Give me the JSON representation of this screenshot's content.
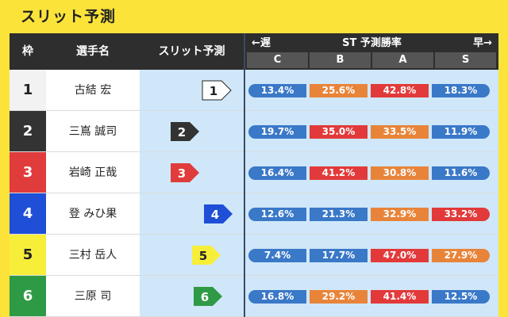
{
  "title": "スリット予測",
  "headers": {
    "waku": "枠",
    "name": "選手名",
    "slit": "スリット予測",
    "st_title": "ST 予測勝率",
    "slow": "←遅",
    "fast": "早→",
    "cols": [
      "C",
      "B",
      "A",
      "S"
    ]
  },
  "colors": {
    "blue": "#3a78c8",
    "orange": "#e8843a",
    "red": "#e23a3a",
    "header_bg": "#2e2e2e",
    "page_bg": "#fce33a",
    "slit_bg": "#cfe7f9"
  },
  "racers": [
    {
      "num": "1",
      "name": "古結 宏",
      "badge_bg": "#ffffff",
      "badge_fg": "#222222",
      "num_bg": "#f2f2f2",
      "num_fg": "#222222",
      "slit_level": 0.7,
      "rates": [
        {
          "v": "13.4%",
          "c": "blue"
        },
        {
          "v": "25.6%",
          "c": "orange"
        },
        {
          "v": "42.8%",
          "c": "red"
        },
        {
          "v": "18.3%",
          "c": "blue"
        }
      ]
    },
    {
      "num": "2",
      "name": "三嶌 誠司",
      "badge_bg": "#333333",
      "badge_fg": "#ffffff",
      "num_bg": "#333333",
      "num_fg": "#ffffff",
      "slit_level": 0.4,
      "rates": [
        {
          "v": "19.7%",
          "c": "blue"
        },
        {
          "v": "35.0%",
          "c": "red"
        },
        {
          "v": "33.5%",
          "c": "orange"
        },
        {
          "v": "11.9%",
          "c": "blue"
        }
      ]
    },
    {
      "num": "3",
      "name": "岩崎 正哉",
      "badge_bg": "#e03c3c",
      "badge_fg": "#ffffff",
      "num_bg": "#e03c3c",
      "num_fg": "#ffffff",
      "slit_level": 0.4,
      "rates": [
        {
          "v": "16.4%",
          "c": "blue"
        },
        {
          "v": "41.2%",
          "c": "red"
        },
        {
          "v": "30.8%",
          "c": "orange"
        },
        {
          "v": "11.6%",
          "c": "blue"
        }
      ]
    },
    {
      "num": "4",
      "name": "登 みひ果",
      "badge_bg": "#1f4fd6",
      "badge_fg": "#ffffff",
      "num_bg": "#1f4fd6",
      "num_fg": "#ffffff",
      "slit_level": 0.72,
      "rates": [
        {
          "v": "12.6%",
          "c": "blue"
        },
        {
          "v": "21.3%",
          "c": "blue"
        },
        {
          "v": "32.9%",
          "c": "orange"
        },
        {
          "v": "33.2%",
          "c": "red"
        }
      ]
    },
    {
      "num": "5",
      "name": "三村 岳人",
      "badge_bg": "#f7ee3a",
      "badge_fg": "#222222",
      "num_bg": "#f7ee3a",
      "num_fg": "#222222",
      "slit_level": 0.6,
      "rates": [
        {
          "v": "7.4%",
          "c": "blue"
        },
        {
          "v": "17.7%",
          "c": "blue"
        },
        {
          "v": "47.0%",
          "c": "red"
        },
        {
          "v": "27.9%",
          "c": "orange"
        }
      ]
    },
    {
      "num": "6",
      "name": "三原 司",
      "badge_bg": "#2f9a45",
      "badge_fg": "#ffffff",
      "num_bg": "#2f9a45",
      "num_fg": "#ffffff",
      "slit_level": 0.62,
      "rates": [
        {
          "v": "16.8%",
          "c": "blue"
        },
        {
          "v": "29.2%",
          "c": "orange"
        },
        {
          "v": "41.4%",
          "c": "red"
        },
        {
          "v": "12.5%",
          "c": "blue"
        }
      ]
    }
  ]
}
